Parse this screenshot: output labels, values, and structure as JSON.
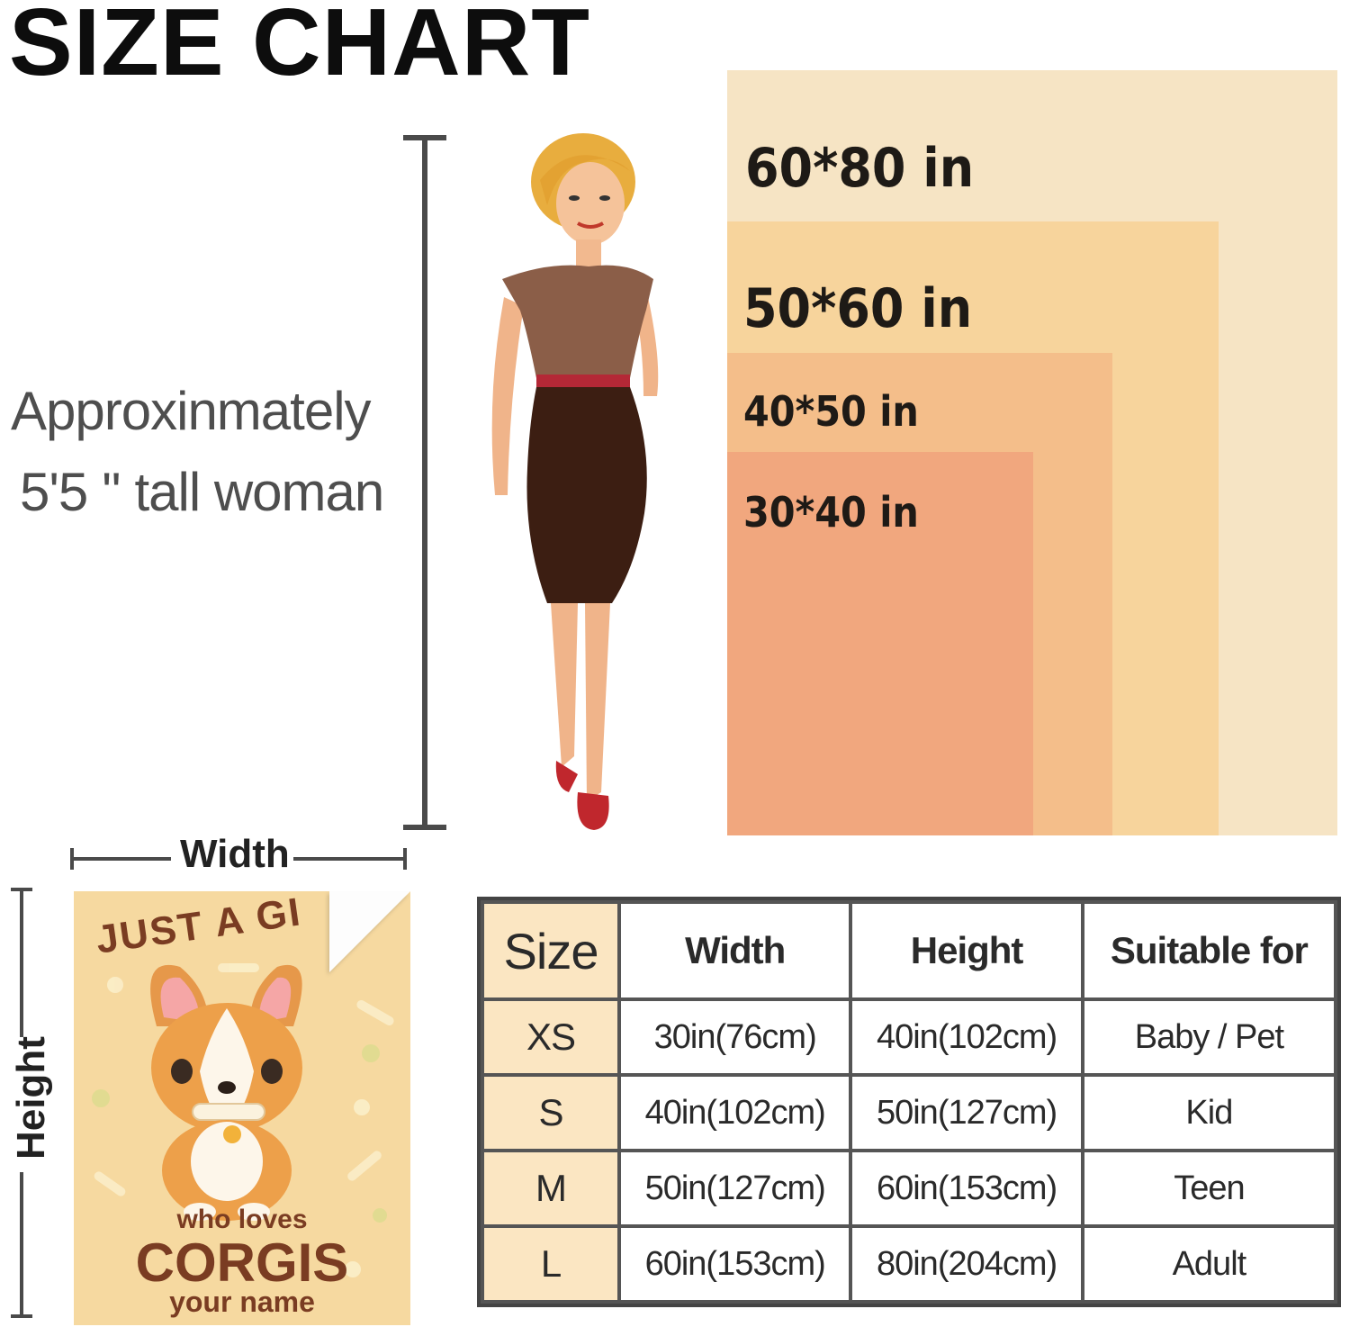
{
  "title": "SIZE CHART",
  "sizes_visual": [
    {
      "label": "60*80 in",
      "color": "#f6e4c4"
    },
    {
      "label": "50*60 in",
      "color": "#f7d49c"
    },
    {
      "label": "40*50 in",
      "color": "#f4be8a"
    },
    {
      "label": "30*40 in",
      "color": "#f1a77e"
    }
  ],
  "description": {
    "line1": "Approxinmately",
    "line2": "5'5 '' tall woman"
  },
  "measurement": {
    "width_label": "Width",
    "height_label": "Height"
  },
  "blanket": {
    "line1": "JUST A GI",
    "line2": "who loves",
    "line3": "CORGIS",
    "line4": "your name"
  },
  "table": {
    "headers": [
      "Size",
      "Width",
      "Height",
      "Suitable for"
    ],
    "rows": [
      [
        "XS",
        "30in(76cm)",
        "40in(102cm)",
        "Baby / Pet"
      ],
      [
        "S",
        "40in(102cm)",
        "50in(127cm)",
        "Kid"
      ],
      [
        "M",
        "50in(127cm)",
        "60in(153cm)",
        "Teen"
      ],
      [
        "L",
        "60in(153cm)",
        "80in(204cm)",
        "Adult"
      ]
    ]
  }
}
